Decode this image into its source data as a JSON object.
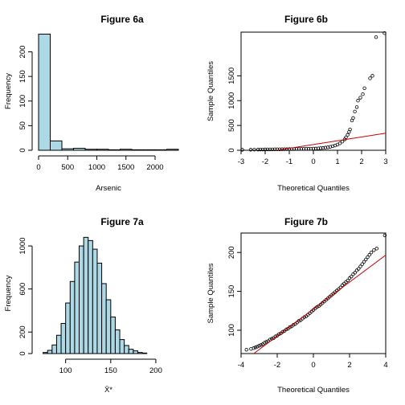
{
  "chart_data": [
    {
      "id": "fig6a",
      "type": "bar",
      "title": "Figure 6a",
      "xlabel": "Arsenic",
      "ylabel": "Frequency",
      "xlim": [
        0,
        2400
      ],
      "ylim": [
        0,
        240
      ],
      "xticks": [
        0,
        500,
        1000,
        1500,
        2000
      ],
      "yticks": [
        0,
        50,
        100,
        150,
        200
      ],
      "bin_edges": [
        0,
        200,
        400,
        600,
        800,
        1000,
        1200,
        1400,
        1600,
        1800,
        2000,
        2200,
        2400
      ],
      "counts": [
        236,
        19,
        3,
        4,
        2,
        2,
        1,
        2,
        1,
        1,
        1,
        2
      ]
    },
    {
      "id": "fig6b",
      "type": "scatter",
      "title": "Figure 6b",
      "xlabel": "Theoretical Quantiles",
      "ylabel": "Sample Quantiles",
      "xlim": [
        -3,
        3
      ],
      "ylim": [
        0,
        2380
      ],
      "xticks": [
        -3,
        -2,
        -1,
        0,
        1,
        2,
        3
      ],
      "yticks": [
        0,
        500,
        1000,
        1500
      ],
      "refline": {
        "from": [
          -2.3,
          -60
        ],
        "to": [
          3,
          345
        ]
      },
      "points": [
        [
          -2.95,
          10
        ],
        [
          -2.6,
          12
        ],
        [
          -2.45,
          13
        ],
        [
          -2.3,
          14
        ],
        [
          -2.2,
          15
        ],
        [
          -2.1,
          15
        ],
        [
          -2.0,
          16
        ],
        [
          -1.9,
          17
        ],
        [
          -1.8,
          17
        ],
        [
          -1.7,
          18
        ],
        [
          -1.6,
          19
        ],
        [
          -1.5,
          19
        ],
        [
          -1.4,
          20
        ],
        [
          -1.3,
          21
        ],
        [
          -1.2,
          21
        ],
        [
          -1.1,
          22
        ],
        [
          -1.0,
          23
        ],
        [
          -0.9,
          23
        ],
        [
          -0.8,
          24
        ],
        [
          -0.7,
          25
        ],
        [
          -0.6,
          26
        ],
        [
          -0.5,
          27
        ],
        [
          -0.4,
          28
        ],
        [
          -0.3,
          29
        ],
        [
          -0.2,
          30
        ],
        [
          -0.1,
          31
        ],
        [
          0.0,
          33
        ],
        [
          0.1,
          35
        ],
        [
          0.2,
          38
        ],
        [
          0.3,
          42
        ],
        [
          0.4,
          47
        ],
        [
          0.5,
          53
        ],
        [
          0.6,
          60
        ],
        [
          0.7,
          70
        ],
        [
          0.8,
          82
        ],
        [
          0.9,
          96
        ],
        [
          1.0,
          115
        ],
        [
          1.1,
          140
        ],
        [
          1.2,
          175
        ],
        [
          1.3,
          220
        ],
        [
          1.35,
          260
        ],
        [
          1.42,
          310
        ],
        [
          1.48,
          370
        ],
        [
          1.52,
          420
        ],
        [
          1.6,
          600
        ],
        [
          1.65,
          650
        ],
        [
          1.72,
          780
        ],
        [
          1.8,
          870
        ],
        [
          1.85,
          1000
        ],
        [
          1.95,
          1060
        ],
        [
          2.05,
          1130
        ],
        [
          2.12,
          1250
        ],
        [
          2.35,
          1450
        ],
        [
          2.45,
          1500
        ],
        [
          2.6,
          2280
        ],
        [
          2.95,
          2360
        ]
      ]
    },
    {
      "id": "fig7a",
      "type": "bar",
      "title": "Figure 7a",
      "xlabel": "X̄*",
      "ylabel": "Frequency",
      "xlim": [
        70,
        225
      ],
      "ylim": [
        0,
        1120
      ],
      "xticks": [
        100,
        150,
        200
      ],
      "yticks": [
        0,
        200,
        600,
        1000
      ],
      "bin_edges": [
        75,
        80,
        85,
        90,
        95,
        100,
        105,
        110,
        115,
        120,
        125,
        130,
        135,
        140,
        145,
        150,
        155,
        160,
        165,
        170,
        175,
        180,
        185,
        190
      ],
      "counts": [
        10,
        30,
        80,
        170,
        280,
        470,
        670,
        850,
        1000,
        1080,
        1050,
        970,
        840,
        650,
        500,
        340,
        220,
        130,
        75,
        40,
        25,
        10,
        5
      ]
    },
    {
      "id": "fig7b",
      "type": "scatter",
      "title": "Figure 7b",
      "xlabel": "Theoretical Quantiles",
      "ylabel": "Sample Quantiles",
      "xlim": [
        -4,
        4
      ],
      "ylim": [
        70,
        225
      ],
      "xticks": [
        -4,
        -2,
        0,
        2,
        4
      ],
      "yticks": [
        100,
        150,
        200
      ],
      "refline": {
        "from": [
          -3.3,
          70
        ],
        "to": [
          4.2,
          200
        ]
      },
      "points": [
        [
          -3.7,
          75
        ],
        [
          -3.45,
          76
        ],
        [
          -3.3,
          77
        ],
        [
          -3.2,
          78
        ],
        [
          -3.1,
          79
        ],
        [
          -3.0,
          80
        ],
        [
          -2.9,
          81
        ],
        [
          -2.8,
          82
        ],
        [
          -2.7,
          84
        ],
        [
          -2.6,
          85
        ],
        [
          -2.5,
          86
        ],
        [
          -2.4,
          88
        ],
        [
          -2.3,
          89
        ],
        [
          -2.2,
          90
        ],
        [
          -2.1,
          92
        ],
        [
          -2.0,
          93
        ],
        [
          -1.9,
          95
        ],
        [
          -1.8,
          96
        ],
        [
          -1.7,
          98
        ],
        [
          -1.6,
          99
        ],
        [
          -1.5,
          101
        ],
        [
          -1.4,
          102
        ],
        [
          -1.3,
          104
        ],
        [
          -1.2,
          105
        ],
        [
          -1.1,
          107
        ],
        [
          -1.0,
          108
        ],
        [
          -0.9,
          110
        ],
        [
          -0.8,
          112
        ],
        [
          -0.7,
          113
        ],
        [
          -0.6,
          115
        ],
        [
          -0.5,
          117
        ],
        [
          -0.4,
          118
        ],
        [
          -0.3,
          120
        ],
        [
          -0.2,
          122
        ],
        [
          -0.1,
          124
        ],
        [
          0.0,
          126
        ],
        [
          0.1,
          128
        ],
        [
          0.2,
          130
        ],
        [
          0.3,
          131
        ],
        [
          0.4,
          133
        ],
        [
          0.5,
          135
        ],
        [
          0.6,
          137
        ],
        [
          0.7,
          139
        ],
        [
          0.8,
          141
        ],
        [
          0.9,
          143
        ],
        [
          1.0,
          145
        ],
        [
          1.1,
          147
        ],
        [
          1.2,
          149
        ],
        [
          1.3,
          151
        ],
        [
          1.4,
          153
        ],
        [
          1.5,
          155
        ],
        [
          1.6,
          158
        ],
        [
          1.7,
          160
        ],
        [
          1.8,
          162
        ],
        [
          1.9,
          164
        ],
        [
          2.0,
          167
        ],
        [
          2.1,
          169
        ],
        [
          2.2,
          172
        ],
        [
          2.3,
          174
        ],
        [
          2.4,
          177
        ],
        [
          2.5,
          179
        ],
        [
          2.6,
          182
        ],
        [
          2.7,
          185
        ],
        [
          2.8,
          188
        ],
        [
          2.9,
          191
        ],
        [
          3.0,
          194
        ],
        [
          3.1,
          197
        ],
        [
          3.2,
          200
        ],
        [
          3.35,
          203
        ],
        [
          3.5,
          205
        ],
        [
          3.95,
          222
        ]
      ]
    }
  ]
}
